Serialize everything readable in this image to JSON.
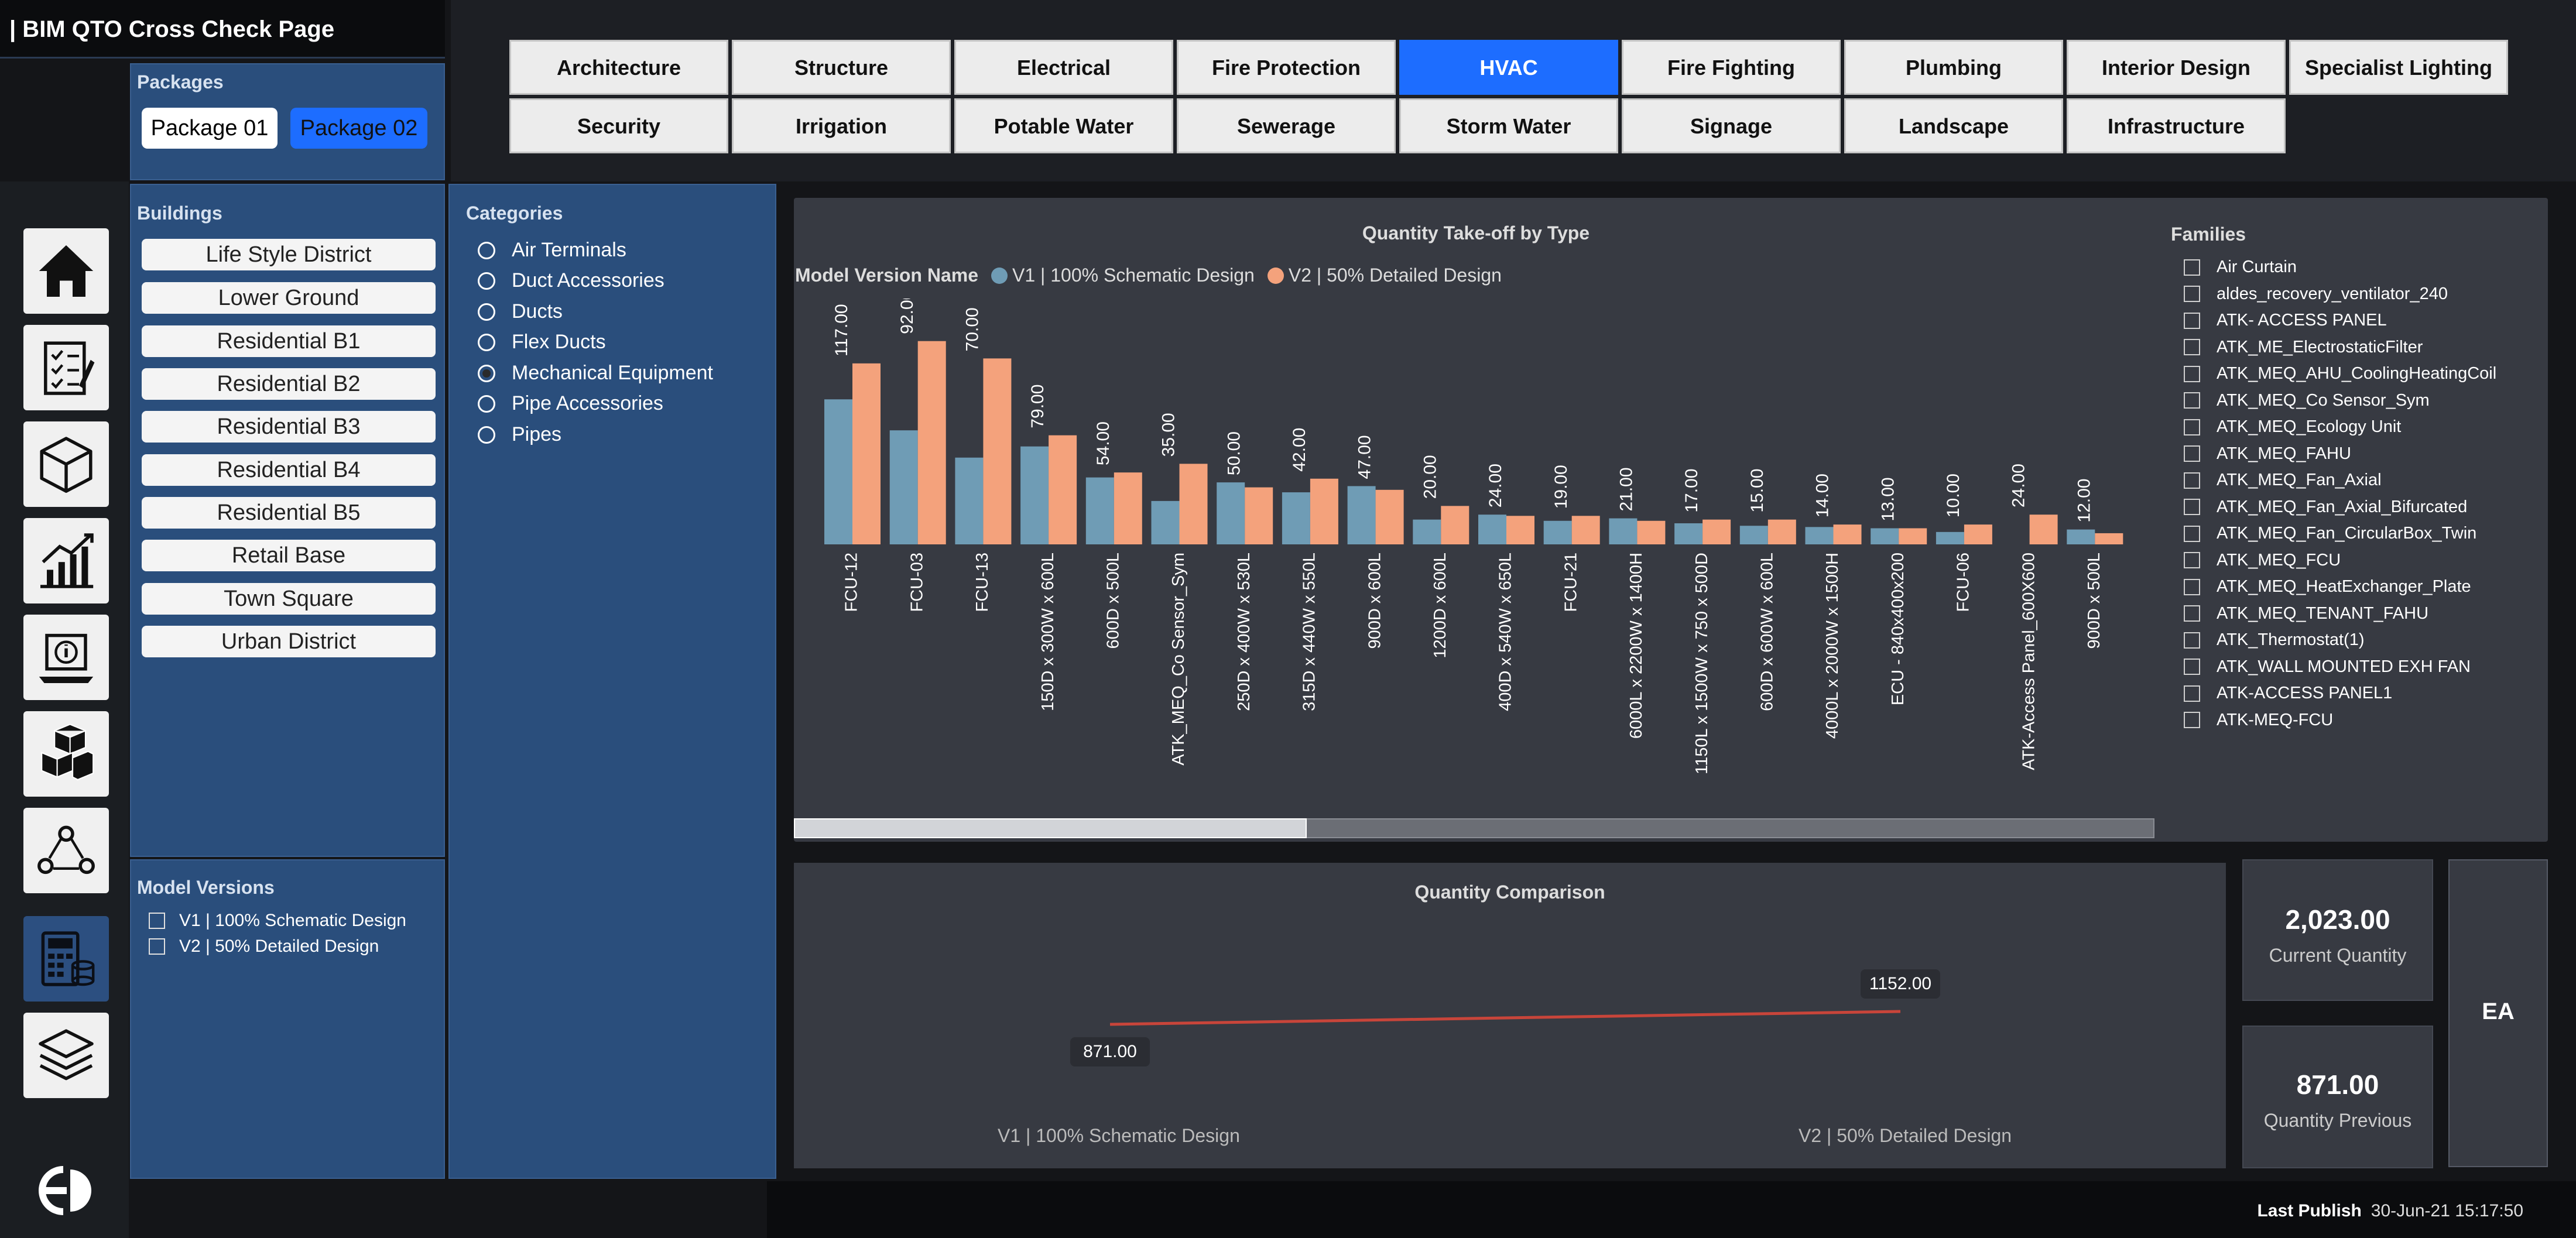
{
  "app": {
    "title": "| BIM QTO Cross Check Page"
  },
  "packages": {
    "title": "Packages",
    "items": [
      "Package 01",
      "Package 02"
    ],
    "selected": "Package 02"
  },
  "disciplines": {
    "row1": [
      "Architecture",
      "Structure",
      "Electrical",
      "Fire Protection",
      "HVAC",
      "Fire Fighting",
      "Plumbing",
      "Interior Design",
      "Specialist Lighting"
    ],
    "row2": [
      "Security",
      "Irrigation",
      "Potable Water",
      "Sewerage",
      "Storm Water",
      "Signage",
      "Landscape",
      "Infrastructure"
    ],
    "active": "HVAC"
  },
  "nav_icons": [
    "home-icon",
    "checklist-icon",
    "cube-icon",
    "analytics-icon",
    "info-report-icon",
    "blocks-icon",
    "workflow-icon",
    "calculator-icon",
    "layers-icon"
  ],
  "buildings": {
    "title": "Buildings",
    "items": [
      "Life Style District",
      "Lower Ground",
      "Residential B1",
      "Residential B2",
      "Residential B3",
      "Residential B4",
      "Residential B5",
      "Retail Base",
      "Town Square",
      "Urban District"
    ]
  },
  "categories": {
    "title": "Categories",
    "items": [
      "Air Terminals",
      "Duct Accessories",
      "Ducts",
      "Flex Ducts",
      "Mechanical Equipment",
      "Pipe Accessories",
      "Pipes"
    ],
    "selected": "Mechanical Equipment"
  },
  "model_versions": {
    "title": "Model Versions",
    "items": [
      "V1 | 100% Schematic Design",
      "V2 | 50% Detailed Design"
    ]
  },
  "families": {
    "title": "Families",
    "items": [
      "Air Curtain",
      "aldes_recovery_ventilator_240",
      "ATK- ACCESS PANEL",
      "ATK_ME_ElectrostaticFilter",
      "ATK_MEQ_AHU_CoolingHeatingCoil",
      "ATK_MEQ_Co Sensor_Sym",
      "ATK_MEQ_Ecology Unit",
      "ATK_MEQ_FAHU",
      "ATK_MEQ_Fan_Axial",
      "ATK_MEQ_Fan_Axial_Bifurcated",
      "ATK_MEQ_Fan_CircularBox_Twin",
      "ATK_MEQ_FCU",
      "ATK_MEQ_HeatExchanger_Plate",
      "ATK_MEQ_TENANT_FAHU",
      "ATK_Thermostat(1)",
      "ATK_WALL MOUNTED EXH FAN",
      "ATK-ACCESS PANEL1",
      "ATK-MEQ-FCU"
    ]
  },
  "chart_data": {
    "type": "bar",
    "title": "Quantity Take-off by Type",
    "legend_title": "Model Version Name",
    "categories": [
      "FCU-12",
      "FCU-03",
      "FCU-13",
      "150D x 300W x 600L",
      "600D x 500L",
      "ATK_MEQ_Co Sensor_Sym",
      "250D x 400W x 530L",
      "315D x 440W x 550L",
      "900D x 600L",
      "1200D x 600L",
      "400D x 540W x 650L",
      "FCU-21",
      "6000L x 2200W x 1400H",
      "1150L x 1500W x 750 x 500D",
      "600D x 600W x 600L",
      "4000L x 2000W x 1500H",
      "ECU - 840x400x200",
      "FCU-06",
      "ATK-Access Panel_600X600",
      "900D x 500L"
    ],
    "series": [
      {
        "name": "V1 | 100% Schematic Design",
        "values": [
          117,
          92,
          70,
          79,
          54,
          35,
          50,
          42,
          47,
          20,
          24,
          19,
          21,
          17,
          15,
          14,
          13,
          10,
          0,
          12
        ]
      },
      {
        "name": "V2 | 50% Detailed Design",
        "values": [
          146,
          164,
          150,
          88,
          58,
          65,
          46,
          53,
          44,
          31,
          23,
          23,
          19,
          20,
          20,
          16,
          13,
          16,
          24,
          9
        ]
      }
    ],
    "data_labels": [
      "117.00",
      "92.00",
      "70.00",
      "79.00",
      "54.00",
      "35.00",
      "50.00",
      "42.00",
      "47.00",
      "20.00",
      "24.00",
      "19.00",
      "21.00",
      "17.00",
      "15.00",
      "14.00",
      "13.00",
      "10.00",
      "24.00",
      "12.00"
    ],
    "colors": {
      "v1": "#6f9cb5",
      "v2": "#f4a27c"
    },
    "legend_position": "top-left",
    "grid": false
  },
  "comparison": {
    "title": "Quantity Comparison",
    "x_labels": [
      "V1 | 100% Schematic Design",
      "V2 | 50% Detailed Design"
    ],
    "values": [
      871,
      1152
    ],
    "value_labels": [
      "871.00",
      "1152.00"
    ],
    "line_color": "#c8453a"
  },
  "kpis": {
    "current": {
      "value": "2,023.00",
      "label": "Current Quantity"
    },
    "previous": {
      "value": "871.00",
      "label": "Quantity Previous"
    },
    "unit": "EA"
  },
  "footer": {
    "label": "Last Publish",
    "value": "30-Jun-21 15:17:50"
  }
}
